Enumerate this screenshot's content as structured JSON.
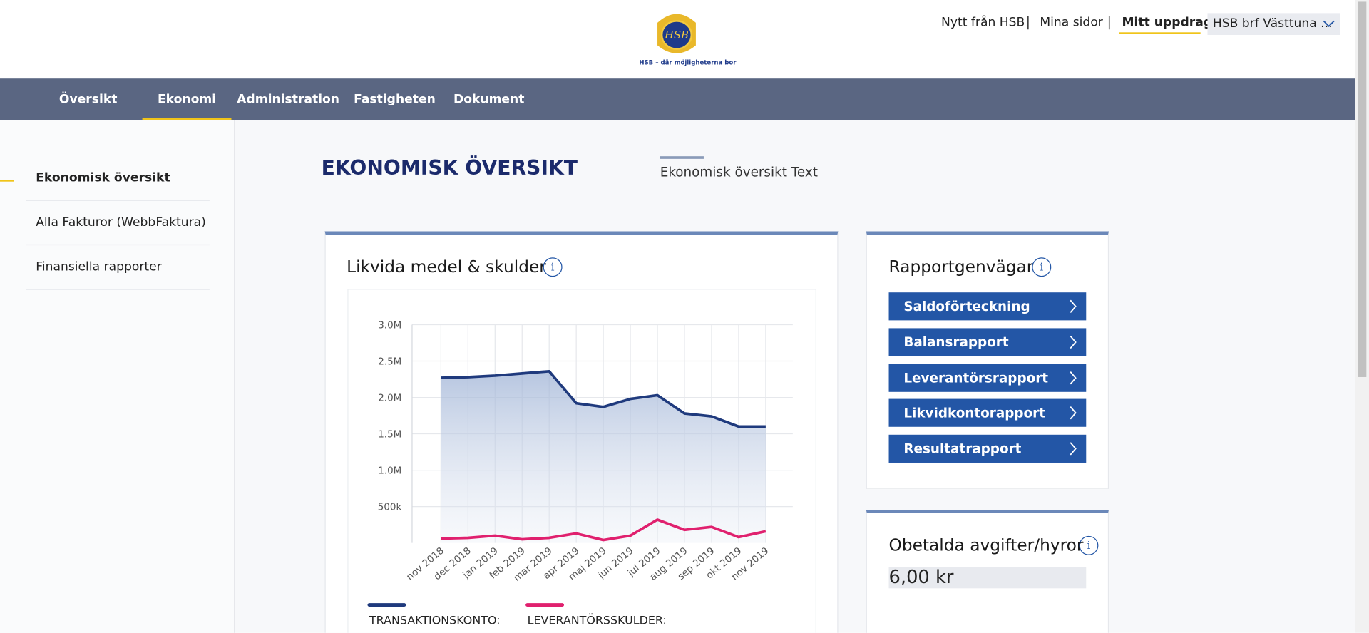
{
  "header": {
    "logo_mark": "HSB",
    "logo_text": "HSB – där möjligheterna bor",
    "links": [
      "Nytt från HSB",
      "Mina sidor",
      "Mitt uppdrag"
    ],
    "account": "HSB brf Västtuna ..."
  },
  "nav": [
    "Översikt",
    "Ekonomi",
    "Administration",
    "Fastigheten",
    "Dokument"
  ],
  "sidebar": [
    "Ekonomisk översikt",
    "Alla Fakturor (WebbFaktura)",
    "Finansiella rapporter"
  ],
  "page": {
    "title": "EKONOMISK ÖVERSIKT",
    "subtitle": "Ekonomisk översikt Text"
  },
  "chart_card": {
    "title": "Likvida medel & skulder",
    "info": "i"
  },
  "chart_data": {
    "type": "line",
    "categories": [
      "nov 2018",
      "dec 2018",
      "jan 2019",
      "feb 2019",
      "mar 2019",
      "apr 2019",
      "maj 2019",
      "jun 2019",
      "jul 2019",
      "aug 2019",
      "sep 2019",
      "okt 2019",
      "nov 2019"
    ],
    "series": [
      {
        "name": "TRANSAKTIONSKONTO:",
        "color": "#1f3a7d",
        "values": [
          2270000,
          2280000,
          2300000,
          2330000,
          2360000,
          1920000,
          1870000,
          1980000,
          2030000,
          1780000,
          1740000,
          1600000,
          1600000
        ]
      },
      {
        "name": "LEVERANTÖRSSKULDER:",
        "color": "#e0206e",
        "values": [
          60000,
          70000,
          100000,
          50000,
          70000,
          130000,
          40000,
          100000,
          320000,
          180000,
          220000,
          80000,
          160000
        ]
      }
    ],
    "ylim": [
      0,
      3000000
    ],
    "yticks": [
      {
        "value": 500000,
        "label": "500k"
      },
      {
        "value": 1000000,
        "label": "1.0M"
      },
      {
        "value": 1500000,
        "label": "1.5M"
      },
      {
        "value": 2000000,
        "label": "2.0M"
      },
      {
        "value": 2500000,
        "label": "2.5M"
      },
      {
        "value": 3000000,
        "label": "3.0M"
      }
    ],
    "grid": true
  },
  "shortcuts": {
    "title": "Rapportgenvägar",
    "info": "i",
    "buttons": [
      "Saldoförteckning",
      "Balansrapport",
      "Leverantörsrapport",
      "Likvidkontorapport",
      "Resultatrapport"
    ]
  },
  "unpaid": {
    "title": "Obetalda avgifter/hyror",
    "info": "i",
    "value": "6,00 kr"
  }
}
